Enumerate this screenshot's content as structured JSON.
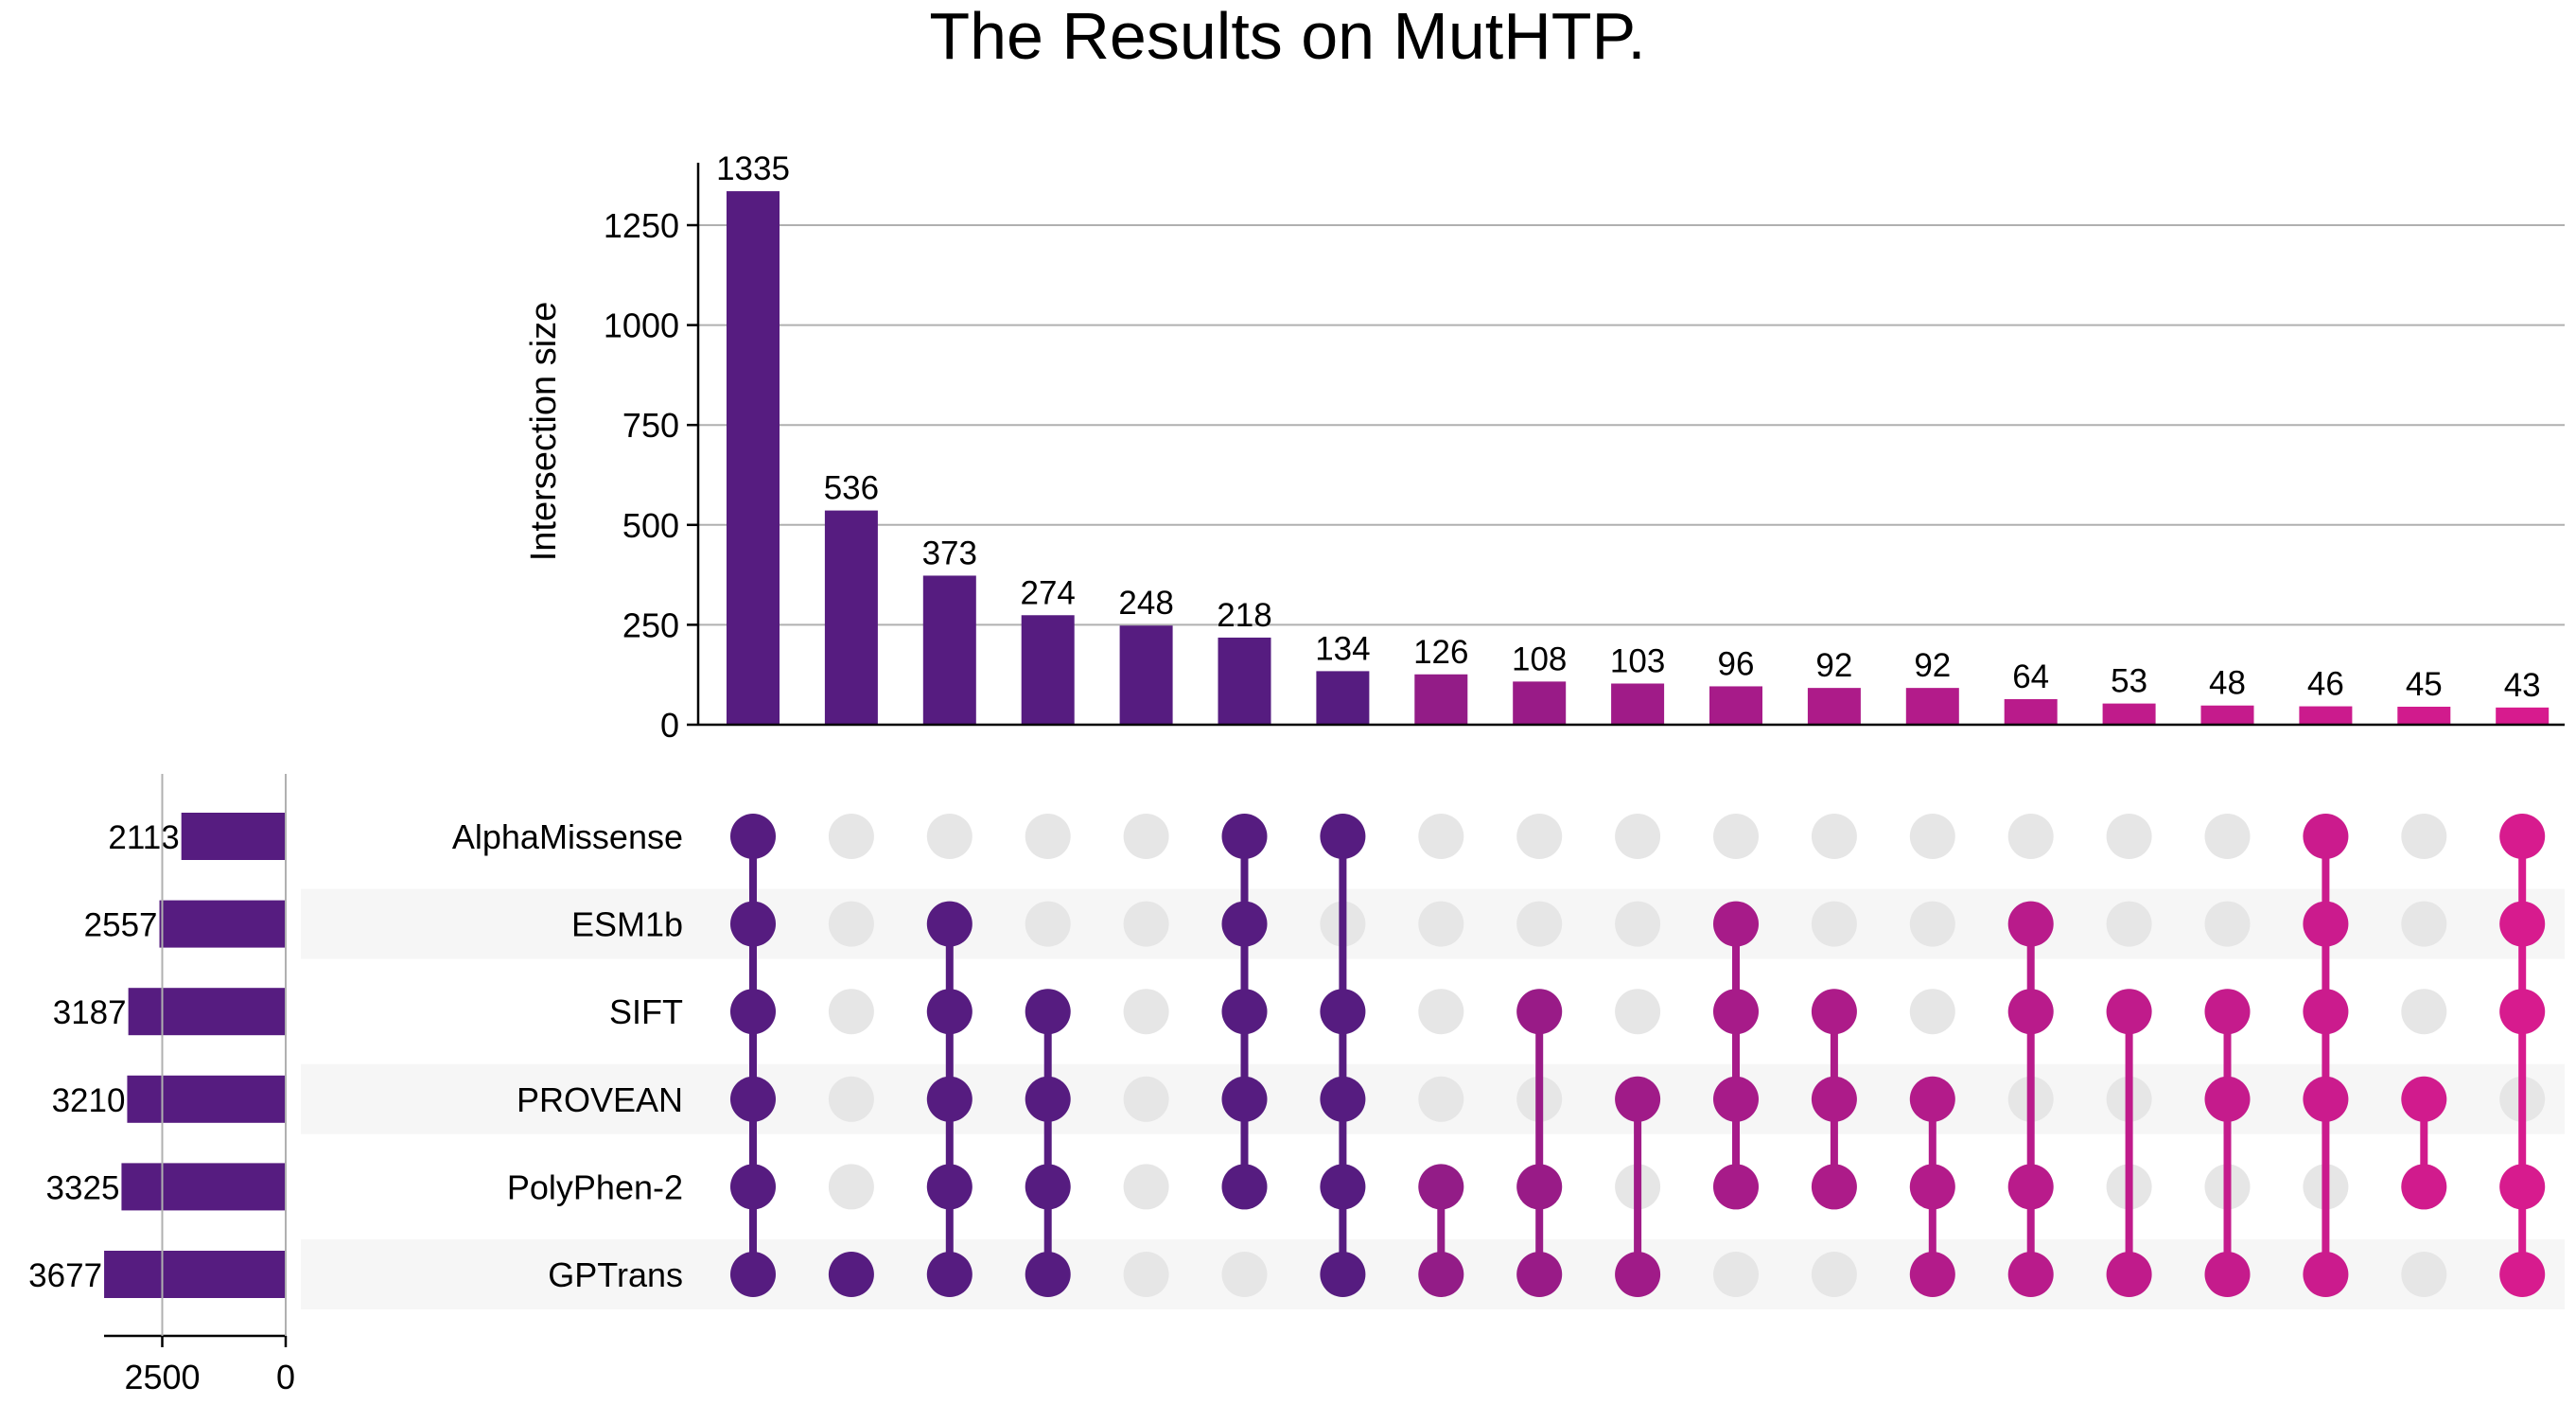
{
  "chart_data": {
    "type": "upset",
    "title": "The Results on MutHTP.",
    "ylabel": "Intersection size",
    "ylim": [
      0,
      1400
    ],
    "yticks": [
      0,
      250,
      500,
      750,
      1000,
      1250
    ],
    "grid": true,
    "sets": [
      "AlphaMissense",
      "ESM1b",
      "SIFT",
      "PROVEAN",
      "PolyPhen-2",
      "GPTrans"
    ],
    "set_sizes": [
      2113,
      2557,
      3187,
      3210,
      3325,
      3677
    ],
    "set_size_ticks": [
      2500,
      0
    ],
    "set_size_xlim": [
      3700,
      0
    ],
    "intersections": [
      {
        "members": [
          0,
          1,
          2,
          3,
          4,
          5
        ],
        "size": 1335
      },
      {
        "members": [
          5
        ],
        "size": 536
      },
      {
        "members": [
          1,
          2,
          3,
          4,
          5
        ],
        "size": 373
      },
      {
        "members": [
          2,
          3,
          4,
          5
        ],
        "size": 274
      },
      {
        "members": [],
        "size": 248
      },
      {
        "members": [
          0,
          1,
          2,
          3,
          4
        ],
        "size": 218
      },
      {
        "members": [
          0,
          2,
          3,
          4,
          5
        ],
        "size": 134
      },
      {
        "members": [
          4,
          5
        ],
        "size": 126
      },
      {
        "members": [
          2,
          4,
          5
        ],
        "size": 108
      },
      {
        "members": [
          3,
          5
        ],
        "size": 103
      },
      {
        "members": [
          1,
          2,
          3,
          4
        ],
        "size": 96
      },
      {
        "members": [
          2,
          3,
          4
        ],
        "size": 92
      },
      {
        "members": [
          3,
          4,
          5
        ],
        "size": 92
      },
      {
        "members": [
          1,
          2,
          4,
          5
        ],
        "size": 64
      },
      {
        "members": [
          2,
          5
        ],
        "size": 53
      },
      {
        "members": [
          2,
          3,
          5
        ],
        "size": 48
      },
      {
        "members": [
          0,
          1,
          2,
          3,
          5
        ],
        "size": 46
      },
      {
        "members": [
          3,
          4
        ],
        "size": 45
      },
      {
        "members": [
          0,
          1,
          2,
          4,
          5
        ],
        "size": 43
      }
    ],
    "colors": {
      "start": "#561c80",
      "end": "#d71b8e",
      "inactive_dot": "#e6e6e6",
      "stripe": "#f6f6f6",
      "grid": "#b0b0b0"
    }
  }
}
